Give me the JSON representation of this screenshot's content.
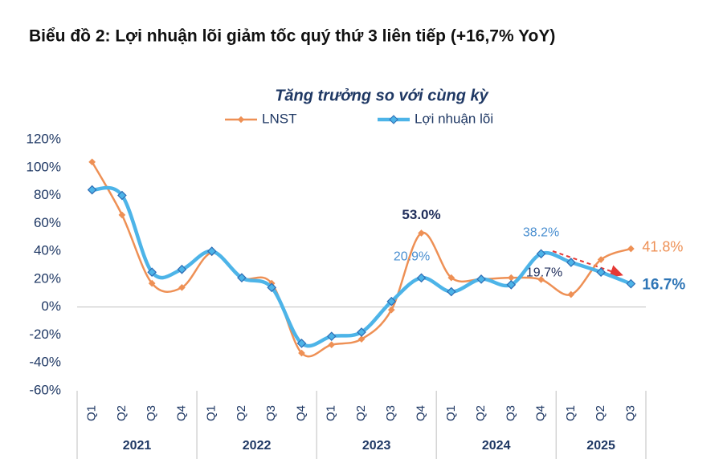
{
  "chart_data": {
    "type": "line",
    "page_title": "Biểu đồ 2: Lợi nhuận lõi giảm tốc quý thứ 3 liên tiếp (+16,7% YoY)",
    "title": "Tăng trưởng so với cùng kỳ",
    "year_groups": [
      {
        "label": "2021",
        "quarters": [
          "Q1",
          "Q2",
          "Q3",
          "Q4"
        ]
      },
      {
        "label": "2022",
        "quarters": [
          "Q1",
          "Q2",
          "Q3",
          "Q4"
        ]
      },
      {
        "label": "2023",
        "quarters": [
          "Q1",
          "Q2",
          "Q3",
          "Q4"
        ]
      },
      {
        "label": "2024",
        "quarters": [
          "Q1",
          "Q2",
          "Q3",
          "Q4"
        ]
      },
      {
        "label": "2025",
        "quarters": [
          "Q1",
          "Q2",
          "Q3"
        ]
      }
    ],
    "series": [
      {
        "name": "LNST",
        "color": "#EE9055",
        "values": [
          104,
          66,
          17,
          14,
          39,
          21,
          17,
          -33,
          -27,
          -23,
          -2,
          53.0,
          21,
          20,
          21,
          19.7,
          9,
          34,
          41.8
        ],
        "value_labels": [
          null,
          null,
          null,
          null,
          null,
          null,
          null,
          null,
          null,
          null,
          null,
          "53.0%",
          null,
          null,
          null,
          "19.7%",
          null,
          null,
          "41.8%"
        ]
      },
      {
        "name": "Lợi nhuận lõi",
        "color": "#4DB4E8",
        "values": [
          84,
          80,
          25,
          27,
          40,
          21,
          14,
          -26,
          -21,
          -18,
          4,
          20.9,
          11,
          20,
          16,
          38.2,
          32,
          25,
          16.7
        ],
        "value_labels": [
          null,
          null,
          null,
          null,
          null,
          null,
          null,
          null,
          null,
          null,
          null,
          "20.9%",
          null,
          null,
          null,
          "38.2%",
          null,
          null,
          "16.7%"
        ]
      }
    ],
    "ylim": [
      -60,
      120
    ],
    "yticks": [
      {
        "value": -60,
        "label": "-60%"
      },
      {
        "value": -40,
        "label": "-40%"
      },
      {
        "value": -20,
        "label": "-20%"
      },
      {
        "value": 0,
        "label": "0%"
      },
      {
        "value": 20,
        "label": "20%"
      },
      {
        "value": 40,
        "label": "40%"
      },
      {
        "value": 60,
        "label": "60%"
      },
      {
        "value": 80,
        "label": "80%"
      },
      {
        "value": 100,
        "label": "100%"
      },
      {
        "value": 120,
        "label": "120%"
      }
    ],
    "grid": false,
    "legend": "top"
  }
}
